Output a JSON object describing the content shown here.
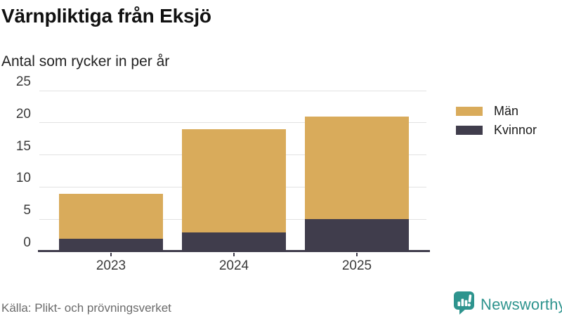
{
  "header": {
    "title": "Värnpliktiga från Eksjö",
    "subtitle": "Antal som rycker in per år"
  },
  "chart_data": {
    "type": "bar",
    "stacked": true,
    "title": "Värnpliktiga från Eksjö",
    "subtitle": "Antal som rycker in per år",
    "categories": [
      "2023",
      "2024",
      "2025"
    ],
    "series": [
      {
        "name": "Män",
        "color": "#d9ab5b",
        "values": [
          7,
          16,
          16
        ]
      },
      {
        "name": "Kvinnor",
        "color": "#403d4c",
        "values": [
          2,
          3,
          5
        ]
      }
    ],
    "stack_order_bottom_to_top": [
      "Kvinnor",
      "Män"
    ],
    "totals": [
      9,
      19,
      21
    ],
    "xlabel": "",
    "ylabel": "",
    "ylim": [
      0,
      25
    ],
    "yticks": [
      0,
      5,
      10,
      15,
      20,
      25
    ],
    "grid": true,
    "legend_position": "right"
  },
  "legend": {
    "items": [
      {
        "label": "Män",
        "color": "#d9ab5b"
      },
      {
        "label": "Kvinnor",
        "color": "#403d4c"
      }
    ]
  },
  "footer": {
    "source": "Källa: Plikt- och prövningsverket",
    "brand": "Newsworthy"
  },
  "colors": {
    "men": "#d9ab5b",
    "women": "#403d4c",
    "brand_teal": "#2e948e",
    "grid": "#e2e2e2",
    "axis": "#3f3c4b"
  }
}
